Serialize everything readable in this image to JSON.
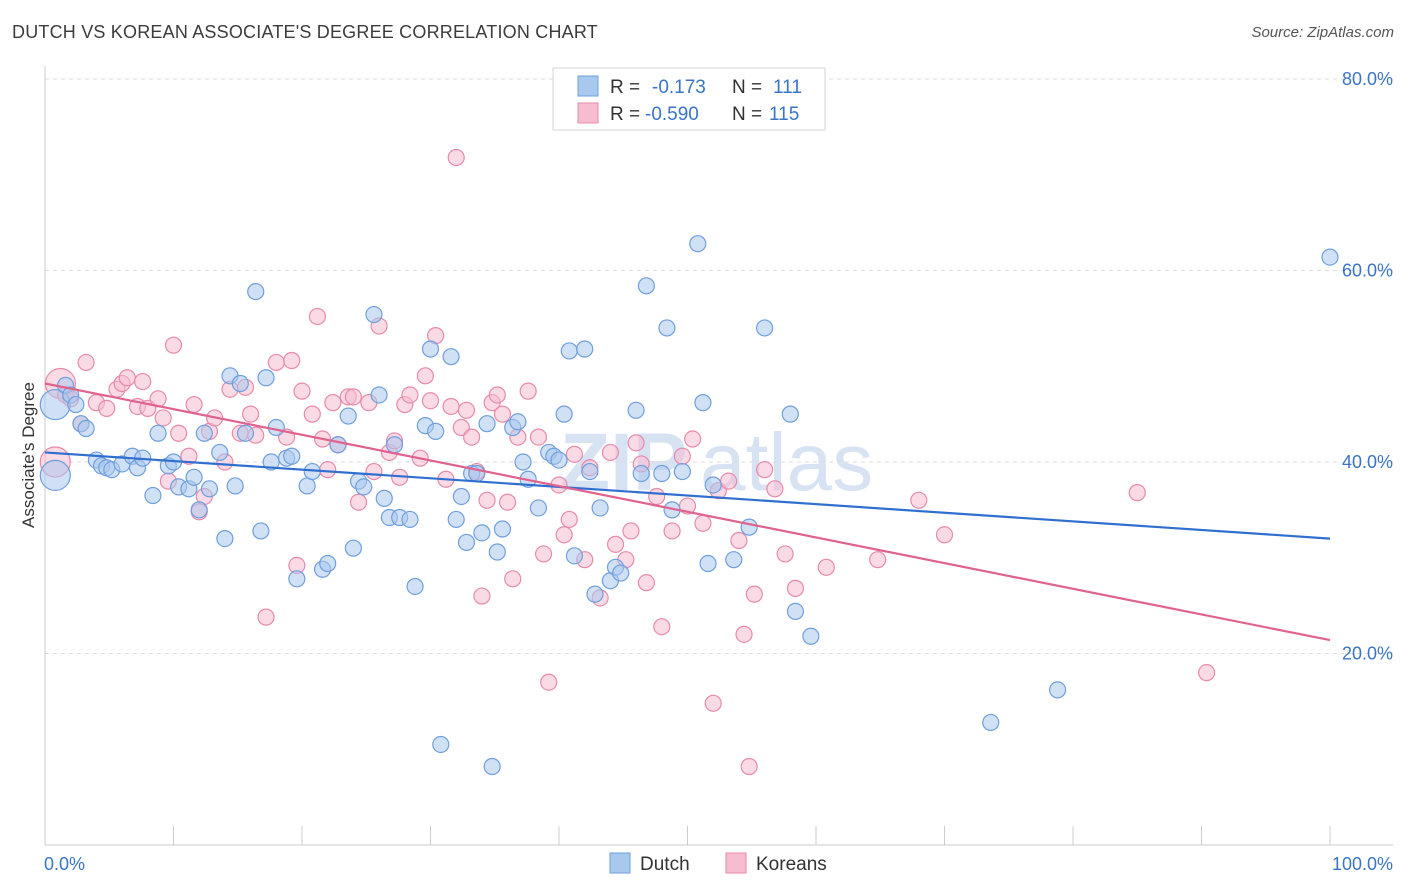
{
  "title": "DUTCH VS KOREAN ASSOCIATE'S DEGREE CORRELATION CHART",
  "source": "Source: ZipAtlas.com",
  "watermark": {
    "zip": "ZIP",
    "atlas": "atlas"
  },
  "colors": {
    "dutch_fill": "#a9c8ee",
    "dutch_stroke": "#6f9fdc",
    "dutch_line": "#2f6fcf",
    "korean_fill": "#f6bccf",
    "korean_stroke": "#e88aaa",
    "korean_line": "#e0628f",
    "axis_text": "#3a75c4",
    "grid": "#dddddd"
  },
  "legend": {
    "items": [
      {
        "r_label": "R =",
        "r_value": "-0.173",
        "n_label": "N =",
        "n_value": "111"
      },
      {
        "r_label": "R =",
        "r_value": "-0.590",
        "n_label": "N =",
        "n_value": "115"
      }
    ],
    "bottom": [
      "Dutch",
      "Koreans"
    ]
  },
  "chart_data": {
    "type": "scatter",
    "title": "DUTCH VS KOREAN ASSOCIATE'S DEGREE CORRELATION CHART",
    "xlabel": "",
    "ylabel": "Associate's Degree",
    "xlim": [
      0,
      100
    ],
    "ylim": [
      0,
      80
    ],
    "x_tick_labels": [
      "0.0%",
      "100.0%"
    ],
    "y_ticks": [
      20,
      40,
      60,
      80
    ],
    "y_tick_labels": [
      "20.0%",
      "40.0%",
      "60.0%",
      "80.0%"
    ],
    "grid": true,
    "legend_position": "top-center",
    "series": [
      {
        "name": "Dutch",
        "r": -0.173,
        "n": 111,
        "trend": {
          "x": [
            0,
            100
          ],
          "y": [
            41.0,
            32.0
          ]
        },
        "points": [
          [
            0.8,
            46
          ],
          [
            0.8,
            38.6
          ],
          [
            1.6,
            48
          ],
          [
            2,
            47
          ],
          [
            2.4,
            46
          ],
          [
            2.8,
            44
          ],
          [
            3.2,
            43.5
          ],
          [
            4,
            40.2
          ],
          [
            4.4,
            39.6
          ],
          [
            4.8,
            39.4
          ],
          [
            5.2,
            39.2
          ],
          [
            6,
            39.8
          ],
          [
            6.8,
            40.6
          ],
          [
            7.2,
            39.4
          ],
          [
            7.6,
            40.4
          ],
          [
            8.4,
            36.5
          ],
          [
            8.8,
            43
          ],
          [
            9.6,
            39.6
          ],
          [
            10,
            40
          ],
          [
            10.4,
            37.4
          ],
          [
            11.2,
            37.2
          ],
          [
            11.6,
            38.4
          ],
          [
            12,
            35
          ],
          [
            12.4,
            43
          ],
          [
            12.8,
            37.2
          ],
          [
            13.6,
            41
          ],
          [
            14,
            32
          ],
          [
            14.4,
            49
          ],
          [
            14.8,
            37.5
          ],
          [
            15.2,
            48.2
          ],
          [
            15.6,
            43
          ],
          [
            16.4,
            57.8
          ],
          [
            16.8,
            32.8
          ],
          [
            17.2,
            48.8
          ],
          [
            17.6,
            40
          ],
          [
            18,
            43.6
          ],
          [
            18.8,
            40.4
          ],
          [
            19.2,
            40.6
          ],
          [
            19.6,
            27.8
          ],
          [
            20.4,
            37.5
          ],
          [
            20.8,
            39
          ],
          [
            21.6,
            28.8
          ],
          [
            22,
            29.4
          ],
          [
            22.8,
            41.8
          ],
          [
            23.6,
            44.8
          ],
          [
            24,
            31
          ],
          [
            24.4,
            38
          ],
          [
            24.8,
            37.4
          ],
          [
            25.6,
            55.4
          ],
          [
            26,
            47
          ],
          [
            26.4,
            36.2
          ],
          [
            26.8,
            34.2
          ],
          [
            27.2,
            41.8
          ],
          [
            27.6,
            34.2
          ],
          [
            28.4,
            34
          ],
          [
            28.8,
            27
          ],
          [
            29.6,
            43.8
          ],
          [
            30,
            51.8
          ],
          [
            30.4,
            43.2
          ],
          [
            30.8,
            10.5
          ],
          [
            31.6,
            51
          ],
          [
            32,
            34
          ],
          [
            32.4,
            36.4
          ],
          [
            32.8,
            31.6
          ],
          [
            33.2,
            38.8
          ],
          [
            33.6,
            38.8
          ],
          [
            34,
            32.6
          ],
          [
            34.4,
            44
          ],
          [
            34.8,
            8.2
          ],
          [
            35.2,
            30.6
          ],
          [
            35.6,
            33
          ],
          [
            36.4,
            43.6
          ],
          [
            36.8,
            44.2
          ],
          [
            37.2,
            40
          ],
          [
            37.6,
            38.2
          ],
          [
            38.4,
            35.2
          ],
          [
            39.2,
            41
          ],
          [
            39.6,
            40.6
          ],
          [
            40,
            40.2
          ],
          [
            40.4,
            45
          ],
          [
            40.8,
            51.6
          ],
          [
            41.2,
            30.2
          ],
          [
            42,
            51.8
          ],
          [
            42.4,
            39
          ],
          [
            42.8,
            26.2
          ],
          [
            43.2,
            35.2
          ],
          [
            44,
            27.6
          ],
          [
            44.4,
            29
          ],
          [
            44.8,
            28.4
          ],
          [
            46,
            45.4
          ],
          [
            46.4,
            38.8
          ],
          [
            46.8,
            58.4
          ],
          [
            48,
            38.8
          ],
          [
            48.4,
            54
          ],
          [
            48.8,
            35
          ],
          [
            49.6,
            39
          ],
          [
            50.8,
            62.8
          ],
          [
            51.2,
            46.2
          ],
          [
            51.6,
            29.4
          ],
          [
            52,
            37.6
          ],
          [
            53.6,
            29.8
          ],
          [
            54.8,
            33.2
          ],
          [
            56,
            54
          ],
          [
            58,
            45
          ],
          [
            58.4,
            24.4
          ],
          [
            59.6,
            21.8
          ],
          [
            73.6,
            12.8
          ],
          [
            78.8,
            16.2
          ],
          [
            100,
            61.4
          ]
        ]
      },
      {
        "name": "Koreans",
        "r": -0.59,
        "n": 115,
        "trend": {
          "x": [
            0,
            100
          ],
          "y": [
            48.2,
            21.4
          ]
        },
        "points": [
          [
            0.8,
            40
          ],
          [
            1.2,
            48.2
          ],
          [
            1.6,
            47
          ],
          [
            2,
            46.6
          ],
          [
            2.8,
            44
          ],
          [
            3.2,
            50.4
          ],
          [
            4,
            46.2
          ],
          [
            4.8,
            45.6
          ],
          [
            5.6,
            47.6
          ],
          [
            6,
            48.2
          ],
          [
            6.4,
            48.8
          ],
          [
            7.2,
            45.8
          ],
          [
            7.6,
            48.4
          ],
          [
            8,
            45.6
          ],
          [
            8.8,
            46.6
          ],
          [
            9.2,
            44.6
          ],
          [
            9.6,
            38
          ],
          [
            10,
            52.2
          ],
          [
            10.4,
            43
          ],
          [
            11.2,
            40.6
          ],
          [
            11.6,
            46
          ],
          [
            12,
            34.8
          ],
          [
            12.4,
            36.4
          ],
          [
            12.8,
            43.2
          ],
          [
            13.2,
            44.6
          ],
          [
            14,
            40
          ],
          [
            14.4,
            47.6
          ],
          [
            15.2,
            43
          ],
          [
            15.6,
            47.8
          ],
          [
            16,
            45
          ],
          [
            16.4,
            42.8
          ],
          [
            17.2,
            23.8
          ],
          [
            18,
            50.4
          ],
          [
            18.8,
            42.6
          ],
          [
            19.2,
            50.6
          ],
          [
            19.6,
            29.2
          ],
          [
            20,
            47.4
          ],
          [
            20.8,
            45
          ],
          [
            21.2,
            55.2
          ],
          [
            21.6,
            42.4
          ],
          [
            22,
            39.2
          ],
          [
            22.4,
            46.2
          ],
          [
            22.8,
            41.8
          ],
          [
            23.6,
            46.8
          ],
          [
            24,
            46.8
          ],
          [
            24.4,
            35.8
          ],
          [
            25.2,
            46.2
          ],
          [
            25.6,
            39
          ],
          [
            26,
            54.2
          ],
          [
            26.8,
            41
          ],
          [
            27.2,
            42.2
          ],
          [
            27.6,
            38.4
          ],
          [
            28,
            46
          ],
          [
            28.4,
            47
          ],
          [
            29.2,
            40.4
          ],
          [
            29.6,
            49
          ],
          [
            30,
            46.4
          ],
          [
            30.4,
            53.2
          ],
          [
            31.2,
            38.2
          ],
          [
            31.6,
            45.8
          ],
          [
            32,
            71.8
          ],
          [
            32.4,
            43.6
          ],
          [
            32.8,
            45.4
          ],
          [
            33.2,
            42.6
          ],
          [
            33.6,
            39
          ],
          [
            34,
            26
          ],
          [
            34.4,
            36
          ],
          [
            34.8,
            46.2
          ],
          [
            35.2,
            47
          ],
          [
            35.6,
            45
          ],
          [
            36,
            35.8
          ],
          [
            36.4,
            27.8
          ],
          [
            36.8,
            42.6
          ],
          [
            37.6,
            47.4
          ],
          [
            38.4,
            42.6
          ],
          [
            38.8,
            30.4
          ],
          [
            39.2,
            17
          ],
          [
            40,
            37.6
          ],
          [
            40.4,
            32.4
          ],
          [
            40.8,
            34
          ],
          [
            41.2,
            40.8
          ],
          [
            42,
            29.8
          ],
          [
            42.4,
            39.4
          ],
          [
            43.2,
            25.8
          ],
          [
            44,
            41
          ],
          [
            44.4,
            31.4
          ],
          [
            45.2,
            29.8
          ],
          [
            45.6,
            32.8
          ],
          [
            46,
            42
          ],
          [
            46.4,
            39.8
          ],
          [
            46.8,
            27.4
          ],
          [
            47.6,
            36.4
          ],
          [
            48,
            22.8
          ],
          [
            48.8,
            32.8
          ],
          [
            49.6,
            40.6
          ],
          [
            50,
            35.4
          ],
          [
            50.4,
            42.4
          ],
          [
            51.2,
            33.6
          ],
          [
            52,
            14.8
          ],
          [
            52.4,
            37
          ],
          [
            53.2,
            38
          ],
          [
            54,
            31.8
          ],
          [
            54.4,
            22
          ],
          [
            54.8,
            8.2
          ],
          [
            55.2,
            26.2
          ],
          [
            56,
            39.2
          ],
          [
            56.8,
            37.2
          ],
          [
            57.6,
            30.4
          ],
          [
            58.4,
            26.8
          ],
          [
            60.8,
            29
          ],
          [
            64.8,
            29.8
          ],
          [
            68,
            36
          ],
          [
            70,
            32.4
          ],
          [
            85,
            36.8
          ],
          [
            90.4,
            18
          ]
        ]
      }
    ]
  }
}
